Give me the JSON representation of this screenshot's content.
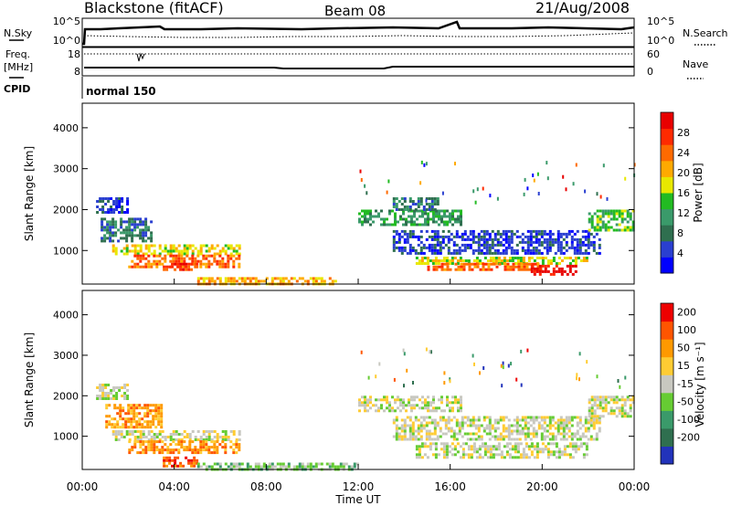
{
  "header": {
    "station": "Blackstone (fitACF)",
    "beam": "Beam 08",
    "date": "21/Aug/2008"
  },
  "panels": {
    "nsky_label": "N.Sky",
    "nsearch_label": "N.Search",
    "freq_label_1": "Freq.",
    "freq_label_2": "[MHz]",
    "nave_label": "Nave",
    "cpid_label": "CPID",
    "cpid_value": "normal 150",
    "nsky_ticks": [
      "10^5",
      "10^0"
    ],
    "nsearch_ticks": [
      "10^5",
      "10^0"
    ],
    "freq_ticks": [
      "18",
      "8"
    ],
    "nave_ticks": [
      "60",
      "0"
    ]
  },
  "chart_data": [
    {
      "type": "heatmap",
      "title": "",
      "xlabel": "Time UT",
      "ylabel": "Slant Range [km]",
      "x_ticks": [
        "00:00",
        "04:00",
        "08:00",
        "12:00",
        "16:00",
        "20:00",
        "00:00"
      ],
      "xlim": [
        0,
        24
      ],
      "y_ticks": [
        "1000",
        "2000",
        "3000",
        "4000"
      ],
      "ylim": [
        180,
        4600
      ],
      "colorbar": {
        "label": "Power [dB]",
        "ticks": [
          "4",
          "8",
          "12",
          "16",
          "20",
          "24",
          "28"
        ],
        "colors": [
          "#0000ff",
          "#2a3fd0",
          "#2f6f4f",
          "#3a9a6a",
          "#22bb22",
          "#e8e800",
          "#ffaa00",
          "#ff6a00",
          "#ff2a00",
          "#e80000"
        ]
      },
      "regions": [
        {
          "t0": 0.6,
          "t1": 2.0,
          "r0": 1900,
          "r1": 2300,
          "level": 1
        },
        {
          "t0": 0.8,
          "t1": 3.0,
          "r0": 1200,
          "r1": 1800,
          "level": 2
        },
        {
          "t0": 1.3,
          "t1": 6.8,
          "r0": 900,
          "r1": 1150,
          "level": 5
        },
        {
          "t0": 2.0,
          "t1": 6.8,
          "r0": 600,
          "r1": 900,
          "level": 7
        },
        {
          "t0": 3.5,
          "t1": 5.0,
          "r0": 500,
          "r1": 700,
          "level": 8
        },
        {
          "t0": 5.0,
          "t1": 11.0,
          "r0": 200,
          "r1": 350,
          "level": 6
        },
        {
          "t0": 12.0,
          "t1": 16.5,
          "r0": 1600,
          "r1": 2000,
          "level": 3
        },
        {
          "t0": 13.5,
          "t1": 15.5,
          "r0": 2000,
          "r1": 2300,
          "level": 2
        },
        {
          "t0": 13.5,
          "t1": 22.5,
          "r0": 900,
          "r1": 1500,
          "level": 1
        },
        {
          "t0": 14.5,
          "t1": 22.0,
          "r0": 700,
          "r1": 850,
          "level": 5
        },
        {
          "t0": 15.0,
          "t1": 20.0,
          "r0": 500,
          "r1": 700,
          "level": 7
        },
        {
          "t0": 19.5,
          "t1": 21.5,
          "r0": 400,
          "r1": 650,
          "level": 9
        },
        {
          "t0": 22.0,
          "t1": 24.0,
          "r0": 1500,
          "r1": 2000,
          "level": 4
        }
      ]
    },
    {
      "type": "heatmap",
      "title": "",
      "xlabel": "Time UT",
      "ylabel": "Slant Range [km]",
      "x_ticks": [
        "00:00",
        "04:00",
        "08:00",
        "12:00",
        "16:00",
        "20:00",
        "00:00"
      ],
      "xlim": [
        0,
        24
      ],
      "y_ticks": [
        "1000",
        "2000",
        "3000",
        "4000"
      ],
      "ylim": [
        180,
        4600
      ],
      "colorbar": {
        "label": "Velocity [m s⁻¹]",
        "ticks": [
          "200",
          "100",
          "50",
          "15",
          "-15",
          "-50",
          "-100",
          "-200"
        ],
        "colors": [
          "#2233bb",
          "#2f6f4f",
          "#3a9a6a",
          "#66cc33",
          "#c8c8c0",
          "#ffcc33",
          "#ff9900",
          "#ff5500",
          "#ee0000"
        ]
      },
      "regions": [
        {
          "t0": 0.6,
          "t1": 2.0,
          "r0": 1900,
          "r1": 2300,
          "level": 4
        },
        {
          "t0": 1.0,
          "t1": 3.5,
          "r0": 1200,
          "r1": 1800,
          "level": 6
        },
        {
          "t0": 1.3,
          "t1": 6.8,
          "r0": 900,
          "r1": 1150,
          "level": 4
        },
        {
          "t0": 2.0,
          "t1": 6.8,
          "r0": 600,
          "r1": 900,
          "level": 6
        },
        {
          "t0": 3.5,
          "t1": 5.0,
          "r0": 250,
          "r1": 500,
          "level": 7
        },
        {
          "t0": 5.0,
          "t1": 12.0,
          "r0": 200,
          "r1": 350,
          "level": 3
        },
        {
          "t0": 12.0,
          "t1": 16.5,
          "r0": 1600,
          "r1": 2000,
          "level": 4
        },
        {
          "t0": 14.5,
          "t1": 22.0,
          "r0": 500,
          "r1": 850,
          "level": 4
        },
        {
          "t0": 13.5,
          "t1": 22.5,
          "r0": 900,
          "r1": 1500,
          "level": 4
        },
        {
          "t0": 22.0,
          "t1": 24.0,
          "r0": 1500,
          "r1": 2000,
          "level": 4
        }
      ]
    }
  ]
}
